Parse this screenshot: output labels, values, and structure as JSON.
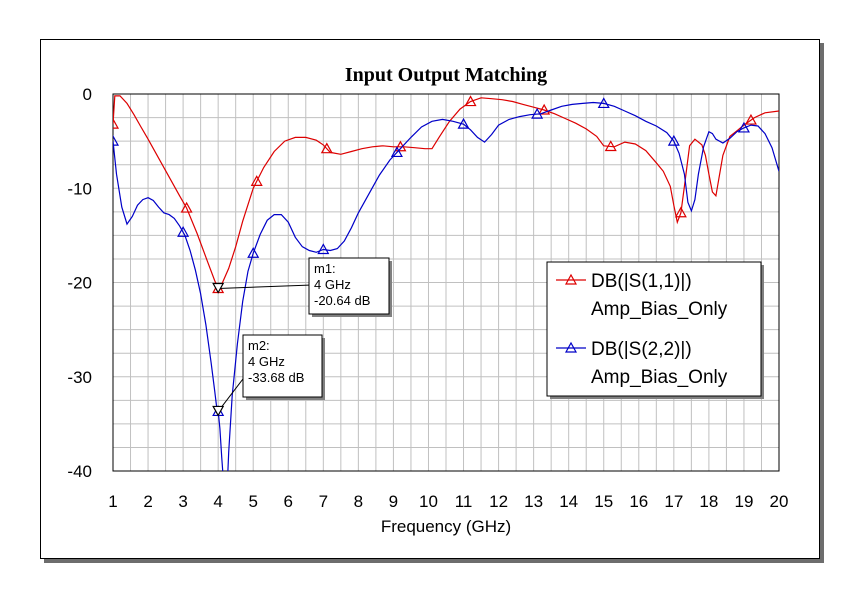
{
  "chart_data": {
    "type": "line",
    "title": "Input Output Matching",
    "xlabel": "Frequency (GHz)",
    "ylabel": "",
    "xlim": [
      1,
      20
    ],
    "ylim": [
      -40,
      0
    ],
    "x_ticks": [
      "1",
      "2",
      "3",
      "4",
      "5",
      "6",
      "7",
      "8",
      "9",
      "10",
      "11",
      "12",
      "13",
      "14",
      "15",
      "16",
      "17",
      "18",
      "19",
      "20"
    ],
    "y_ticks": [
      "0",
      "-10",
      "-20",
      "-30",
      "-40"
    ],
    "grid": true,
    "legend_position": "right",
    "series": [
      {
        "name": "DB(|S(1,1)|)",
        "sub": "Amp_Bias_Only",
        "color": "#dd0000",
        "x": [
          1.0,
          1.05,
          1.2,
          1.4,
          1.6,
          1.8,
          2.0,
          2.3,
          2.6,
          2.9,
          3.1,
          3.4,
          3.7,
          3.9,
          4.0,
          4.1,
          4.3,
          4.5,
          4.7,
          5.0,
          5.3,
          5.6,
          5.9,
          6.2,
          6.5,
          6.8,
          7.0,
          7.2,
          7.5,
          7.8,
          8.1,
          8.4,
          8.7,
          9.0,
          9.3,
          9.6,
          9.9,
          10.1,
          10.3,
          10.6,
          10.9,
          11.2,
          11.5,
          11.8,
          12.1,
          12.4,
          12.7,
          13.0,
          13.3,
          13.6,
          13.9,
          14.2,
          14.5,
          14.8,
          15.0,
          15.3,
          15.6,
          15.9,
          16.2,
          16.5,
          16.7,
          16.9,
          17.0,
          17.1,
          17.2,
          17.3,
          17.45,
          17.6,
          17.8,
          17.9,
          18.0,
          18.1,
          18.2,
          18.4,
          18.6,
          18.8,
          19.0,
          19.3,
          19.6,
          20.0
        ],
        "y": [
          -3.2,
          -0.2,
          -0.2,
          -1.0,
          -2.2,
          -3.5,
          -4.8,
          -6.8,
          -8.8,
          -10.8,
          -12.1,
          -14.8,
          -17.8,
          -19.8,
          -20.64,
          -20.2,
          -18.5,
          -16.2,
          -13.5,
          -10.0,
          -7.8,
          -6.1,
          -5.0,
          -4.6,
          -4.6,
          -4.9,
          -5.4,
          -6.2,
          -6.4,
          -6.1,
          -5.8,
          -5.6,
          -5.5,
          -5.6,
          -5.6,
          -5.7,
          -5.8,
          -5.8,
          -4.6,
          -2.9,
          -1.6,
          -0.8,
          -0.4,
          -0.5,
          -0.6,
          -0.8,
          -1.1,
          -1.4,
          -1.7,
          -2.1,
          -2.6,
          -3.1,
          -3.7,
          -4.5,
          -5.5,
          -5.6,
          -5.1,
          -5.3,
          -6.0,
          -7.3,
          -8.2,
          -9.8,
          -11.8,
          -13.6,
          -12.6,
          -9.8,
          -5.5,
          -4.8,
          -5.4,
          -6.5,
          -8.5,
          -10.4,
          -10.8,
          -6.5,
          -4.5,
          -3.9,
          -3.3,
          -2.5,
          -2.0,
          -1.8
        ],
        "marker_x": [
          1,
          3.1,
          4,
          5.1,
          7.1,
          9.2,
          11.2,
          13.3,
          15.2,
          17.2,
          19.2
        ]
      },
      {
        "name": "DB(|S(2,2)|)",
        "sub": "Amp_Bias_Only",
        "color": "#0000c8",
        "x": [
          1.0,
          1.1,
          1.25,
          1.4,
          1.55,
          1.7,
          1.85,
          2.0,
          2.15,
          2.3,
          2.45,
          2.6,
          2.75,
          2.9,
          3.05,
          3.2,
          3.35,
          3.5,
          3.65,
          3.8,
          3.9,
          3.95,
          4.0,
          4.05,
          4.1,
          4.15,
          4.2,
          4.25,
          4.3,
          4.4,
          4.55,
          4.7,
          4.85,
          5.0,
          5.2,
          5.4,
          5.6,
          5.8,
          6.0,
          6.2,
          6.4,
          6.6,
          6.8,
          7.0,
          7.2,
          7.4,
          7.6,
          7.8,
          8.0,
          8.3,
          8.6,
          8.9,
          9.2,
          9.5,
          9.8,
          10.1,
          10.4,
          10.7,
          11.0,
          11.2,
          11.4,
          11.6,
          11.8,
          12.0,
          12.3,
          12.6,
          12.9,
          13.2,
          13.5,
          13.8,
          14.1,
          14.4,
          14.7,
          15.0,
          15.3,
          15.6,
          15.9,
          16.2,
          16.5,
          16.8,
          17.0,
          17.15,
          17.3,
          17.4,
          17.5,
          17.6,
          17.7,
          17.85,
          18.0,
          18.1,
          18.2,
          18.4,
          18.6,
          18.8,
          19.0,
          19.2,
          19.4,
          19.6,
          19.8,
          20.0
        ],
        "y": [
          -5.0,
          -8.5,
          -12.0,
          -13.8,
          -13.0,
          -11.8,
          -11.2,
          -11.0,
          -11.3,
          -12.0,
          -12.6,
          -12.8,
          -13.2,
          -14.0,
          -15.0,
          -16.6,
          -18.7,
          -21.2,
          -24.5,
          -28.5,
          -31.5,
          -33.0,
          -33.68,
          -35.5,
          -38.5,
          -41.0,
          -43.0,
          -42.5,
          -38.0,
          -32.0,
          -26.5,
          -22.0,
          -18.8,
          -16.9,
          -14.9,
          -13.4,
          -12.8,
          -12.8,
          -13.6,
          -15.2,
          -16.2,
          -16.6,
          -16.8,
          -16.5,
          -16.6,
          -16.4,
          -15.6,
          -14.2,
          -12.6,
          -10.6,
          -8.6,
          -7.0,
          -5.8,
          -4.6,
          -3.5,
          -2.9,
          -2.7,
          -2.9,
          -3.2,
          -3.8,
          -4.6,
          -5.1,
          -4.3,
          -3.3,
          -2.7,
          -2.4,
          -2.2,
          -2.1,
          -1.7,
          -1.3,
          -1.1,
          -1.0,
          -0.9,
          -1.0,
          -1.3,
          -1.8,
          -2.3,
          -2.9,
          -3.4,
          -4.1,
          -5.0,
          -6.3,
          -8.5,
          -11.5,
          -12.4,
          -11.2,
          -8.5,
          -5.6,
          -4.0,
          -4.2,
          -4.8,
          -5.2,
          -4.7,
          -4.0,
          -3.6,
          -3.3,
          -3.4,
          -4.2,
          -5.7,
          -8.2
        ],
        "marker_x": [
          1,
          3.0,
          4,
          5.0,
          7.0,
          9.1,
          11.0,
          13.1,
          15.0,
          17.0,
          19.0
        ]
      }
    ],
    "markers": [
      {
        "id": "m1",
        "lines": [
          "m1:",
          "4 GHz",
          "-20.64 dB"
        ],
        "x": 4,
        "y": -20.64,
        "series": 0
      },
      {
        "id": "m2",
        "lines": [
          "m2:",
          "4 GHz",
          "-33.68 dB"
        ],
        "x": 4,
        "y": -33.68,
        "series": 1
      }
    ]
  }
}
